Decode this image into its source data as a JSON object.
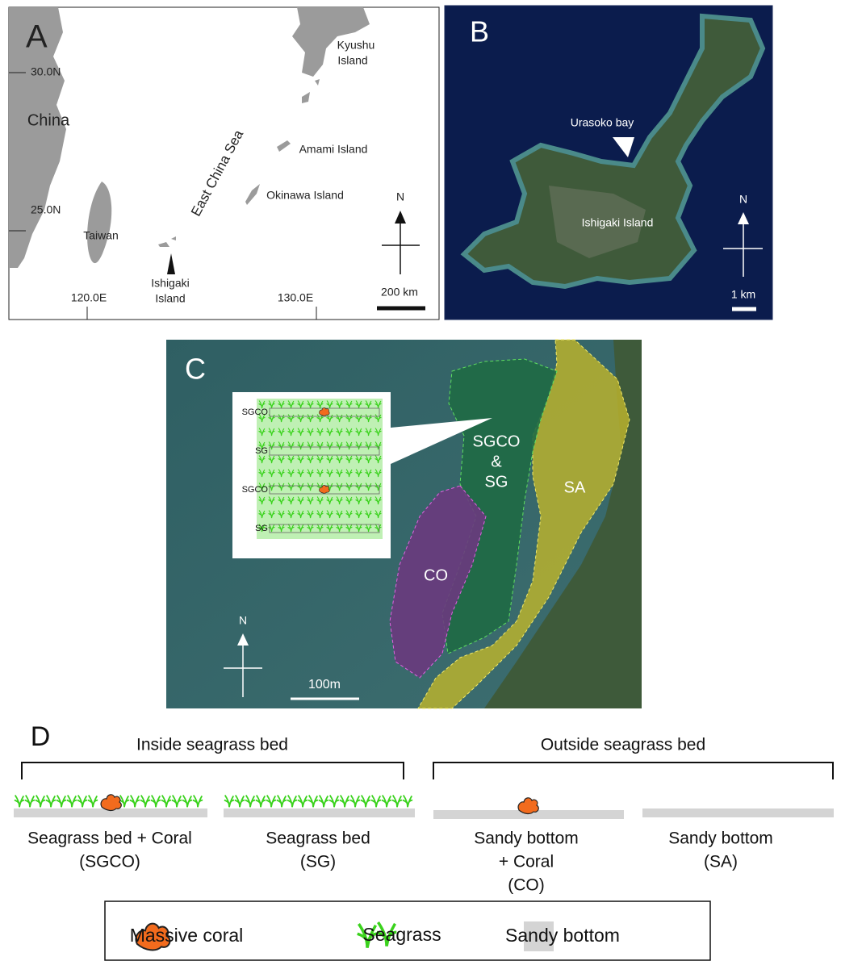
{
  "panel_a": {
    "label": "A",
    "lat_labels": [
      "30.0N",
      "25.0N"
    ],
    "lon_labels": [
      "120.0E",
      "130.0E"
    ],
    "places": {
      "china": "China",
      "taiwan": "Taiwan",
      "kyushu": [
        "Kyushu",
        "Island"
      ],
      "amami": "Amami Island",
      "okinawa": "Okinawa Island",
      "ishigaki": [
        "Ishigaki",
        "Island"
      ],
      "sea": "East China Sea"
    },
    "north": "N",
    "scale": "200 km"
  },
  "panel_b": {
    "label": "B",
    "bay": "Urasoko bay",
    "island": "Ishigaki Island",
    "north": "N",
    "scale": "1 km"
  },
  "panel_c": {
    "label": "C",
    "inset_rows": [
      "SGCO",
      "SG",
      "SGCO",
      "SG"
    ],
    "zones": {
      "sgco_sg": [
        "SGCO",
        "&",
        "SG"
      ],
      "sa": "SA",
      "co": "CO"
    },
    "north": "N",
    "scale": "100m"
  },
  "panel_d": {
    "label": "D",
    "groups": [
      "Inside seagrass bed",
      "Outside seagrass bed"
    ],
    "sites": [
      [
        "Seagrass bed + Coral",
        "(SGCO)"
      ],
      [
        "Seagrass bed",
        "(SG)"
      ],
      [
        "Sandy bottom",
        "+ Coral",
        "(CO)"
      ],
      [
        "Sandy bottom",
        "(SA)"
      ]
    ],
    "legend": [
      "Massive coral",
      "Seagrass",
      "Sandy bottom"
    ]
  }
}
